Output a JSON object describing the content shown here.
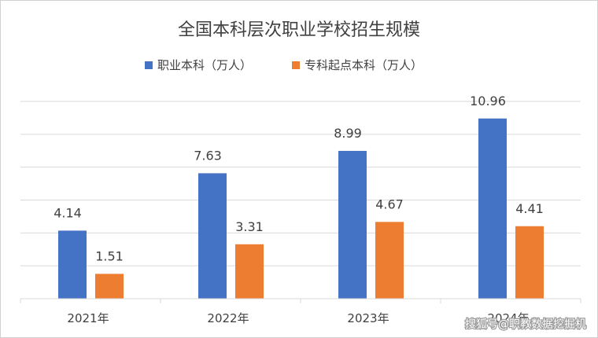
{
  "chart_data": {
    "type": "bar",
    "title": "全国本科层次职业学校招生规模",
    "categories": [
      "2021年",
      "2022年",
      "2023年",
      "2024年"
    ],
    "series": [
      {
        "name": "职业本科（万人）",
        "color": "#4472c4",
        "values": [
          4.14,
          7.63,
          8.99,
          10.96
        ]
      },
      {
        "name": "专科起点本科（万人）",
        "color": "#ed7d31",
        "values": [
          1.51,
          3.31,
          4.67,
          4.41
        ]
      }
    ],
    "ylim": [
      0,
      12
    ],
    "grid": true,
    "legend_position": "top",
    "data_labels": true,
    "y_axis_labels_visible": false
  },
  "watermark": "搜狐号@职教数据挖掘机"
}
